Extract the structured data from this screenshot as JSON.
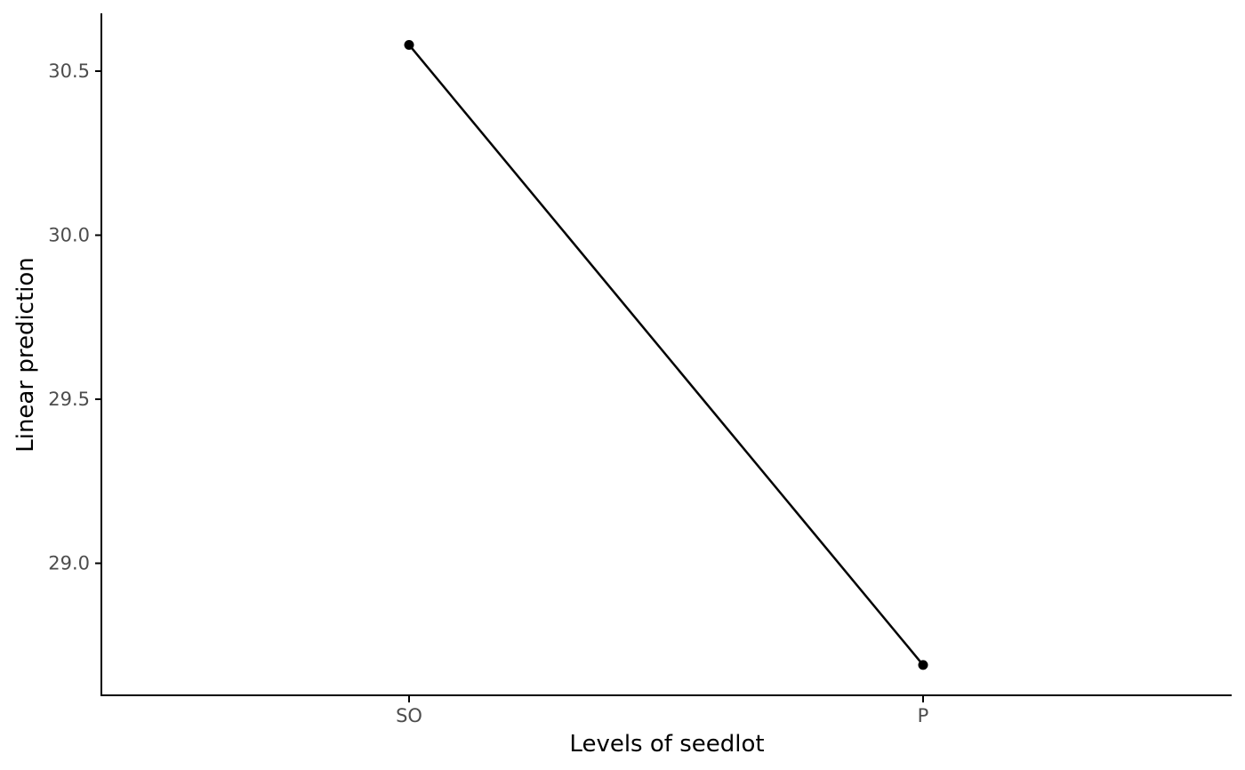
{
  "chart_data": {
    "type": "line",
    "title": "",
    "xlabel": "Levels of seedlot",
    "ylabel": "Linear prediction",
    "categories": [
      "SO",
      "P"
    ],
    "values": [
      30.58,
      28.69
    ],
    "y_ticks": [
      29.0,
      29.5,
      30.0,
      30.5
    ],
    "y_tick_labels": [
      "29.0",
      "29.5",
      "30.0",
      "30.5"
    ],
    "ylim": [
      28.6,
      30.67
    ],
    "grid": false,
    "legend": "none",
    "line_color": "#000000",
    "point_color": "#000000",
    "tick_label_color": "#4d4d4d"
  }
}
